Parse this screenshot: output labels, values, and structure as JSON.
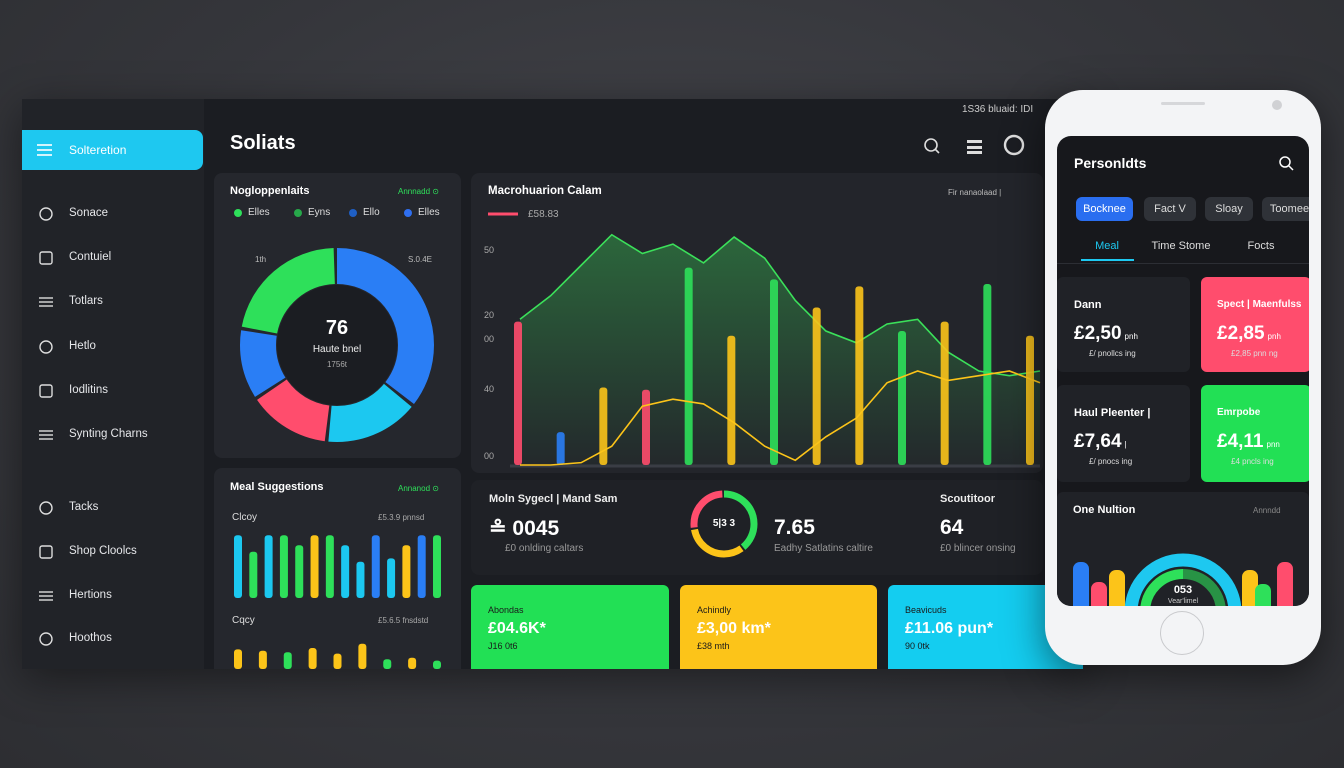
{
  "status_bar": "1S36 bluaid: IDI",
  "sidebar": {
    "active": "Solteretion",
    "items": [
      "Sonace",
      "Contuiel",
      "Totlars",
      "Hetlo",
      "Iodlitins",
      "Synting Charns",
      "Tacks",
      "Shop Cloolcs",
      "Hertions",
      "Hoothos"
    ]
  },
  "header": {
    "title": "Soliats"
  },
  "nutrients_card": {
    "title": "Nogloppenlaits",
    "link": "Annnadd ⊙",
    "legend": [
      {
        "name": "Elles",
        "color": "#2ee05a"
      },
      {
        "name": "Eyns",
        "color": "#27a84a"
      },
      {
        "name": "Ello",
        "color": "#1f5fc4"
      },
      {
        "name": "Elles",
        "color": "#2f6ff0"
      }
    ],
    "label_left": "1th",
    "label_right": "S.0.4E",
    "center_value": "76",
    "center_label": "Haute bnel",
    "center_sub": "1756t",
    "chart": {
      "type": "pie",
      "values": [
        36,
        16,
        14,
        12,
        22
      ],
      "colors": [
        "#2a7ef5",
        "#1cc8f0",
        "#ff4d6d",
        "#2a7ef5",
        "#2ee05a"
      ]
    }
  },
  "meal_card": {
    "title": "Meal Suggestions",
    "link": "Annanod ⊙",
    "group_1": {
      "label": "Clcoy",
      "note": "£5.3.9 pnnsd",
      "chart": {
        "type": "bar",
        "ylim": [
          0,
          100
        ],
        "values": [
          95,
          70,
          95,
          95,
          80,
          95,
          95,
          80,
          55,
          95,
          60,
          80,
          95,
          95
        ],
        "colors": [
          "#1cc8f0",
          "#2ee05a",
          "#1cc8f0",
          "#2ee05a",
          "#2ee05a",
          "#fcc419",
          "#2ee05a",
          "#1cc8f0",
          "#1cc8f0",
          "#2a7ef5",
          "#1cc8f0",
          "#fcc419",
          "#2a7ef5",
          "#2ee05a"
        ]
      }
    },
    "group_2": {
      "label": "Cqcy",
      "note": "£5.6.5 fnsdstd",
      "chart": {
        "type": "bar",
        "ylim": [
          0,
          100
        ],
        "values": [
          70,
          65,
          60,
          75,
          55,
          90,
          35,
          40,
          30
        ],
        "colors": [
          "#fcc419",
          "#fcc419",
          "#2ee05a",
          "#fcc419",
          "#fcc419",
          "#fcc419",
          "#2ee05a",
          "#fcc419",
          "#2ee05a"
        ]
      }
    }
  },
  "macro_card": {
    "title": "Macrohuarion Calam",
    "legend_label": "£58.83",
    "note": "Fir nanaolaad |",
    "y_labels": [
      "50",
      "20",
      "00",
      "40",
      "00"
    ],
    "chart": {
      "type": "bar",
      "ylim": [
        0,
        100
      ],
      "bars": {
        "values": [
          61,
          14,
          33,
          32,
          84,
          55,
          79,
          67,
          76,
          57,
          61,
          77,
          55
        ],
        "colors": [
          "#ff4d6d",
          "#2a7ef5",
          "#fcc419",
          "#ff4d6d",
          "#2ee05a",
          "#fcc419",
          "#2ee05a",
          "#fcc419",
          "#fcc419",
          "#2ee05a",
          "#fcc419",
          "#2ee05a",
          "#fcc419"
        ]
      },
      "green_area": {
        "color": "#3be05a",
        "values": [
          62,
          72,
          85,
          98,
          90,
          94,
          86,
          97,
          88,
          70,
          57,
          52,
          60,
          62,
          48,
          40,
          38,
          40
        ]
      },
      "yellow_line": {
        "color": "#fcc419",
        "values": [
          0,
          0,
          1,
          8,
          25,
          28,
          26,
          18,
          8,
          2,
          12,
          20,
          35,
          40,
          36,
          38,
          40,
          35
        ]
      }
    }
  },
  "stats": [
    {
      "title": "Moln Sygecl | Mand Sam",
      "value": "≗ 0045",
      "sub": "£0 onlding caltars"
    },
    {
      "ring_label": "5|3 3",
      "value": "7.65",
      "sub": "Eadhy Satlatins caltire"
    },
    {
      "title": "Scoutitoor",
      "value": "64",
      "sub": "£0 blincer onsing"
    }
  ],
  "summary_cards": [
    {
      "label": "Abondas",
      "value": "£04.6K*",
      "sub": "J16 0t6",
      "color": "#22e055"
    },
    {
      "label": "Achindly",
      "value": "£3,00 km*",
      "sub": "£38 mth",
      "color": "#fcc419"
    },
    {
      "label": "Beavicuds",
      "value": "£11.06 pun*",
      "sub": "90 0tk",
      "color": "#14cdf0"
    }
  ],
  "phone": {
    "title": "Personldts",
    "tabs": [
      "Bocknee",
      "Fact V",
      "Sloay",
      "Toomee"
    ],
    "subtabs": [
      "Meal",
      "Time Stome",
      "Focts"
    ],
    "tiles": [
      {
        "label": "Dann",
        "value": "£2,50",
        "unit": "pnh",
        "sub": "£/ pnollcs ing",
        "color": "#202227"
      },
      {
        "label": "Spect | Maenfulss",
        "value": "£2,85",
        "unit": "pnh",
        "sub": "£2,85 pnn ng",
        "color": "#ff4d6d"
      },
      {
        "label": "Haul Pleenter |",
        "value": "£7,64",
        "unit": "|",
        "sub": "£/ pnocs ing",
        "color": "#202227"
      },
      {
        "label": "Emrpobe",
        "value": "£4,11",
        "unit": "pnn",
        "sub": "£4 pncls ing",
        "color": "#22e055"
      }
    ],
    "section": {
      "title": "One Nultion",
      "note": "Annndd",
      "ring_value": "053",
      "ring_label": "Vear'limel"
    }
  }
}
